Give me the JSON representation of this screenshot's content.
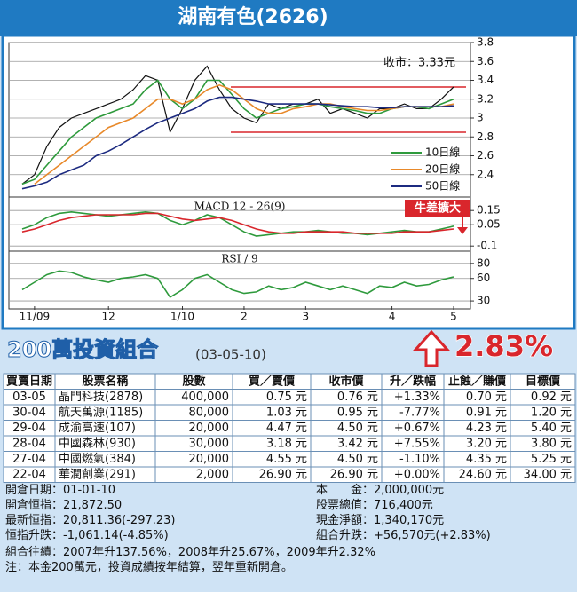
{
  "header": {
    "title": "湖南有色(2626)"
  },
  "chart_data": [
    {
      "type": "line",
      "categories": [
        null,
        "11/09",
        null,
        null,
        null,
        null,
        null,
        "12",
        null,
        null,
        null,
        null,
        null,
        "1/10",
        null,
        null,
        null,
        null,
        "2",
        null,
        null,
        null,
        null,
        "3",
        null,
        null,
        null,
        null,
        null,
        null,
        "4",
        null,
        null,
        null,
        null,
        "5"
      ],
      "ylim": [
        2.2,
        3.8
      ],
      "yticks": [
        2.4,
        2.6,
        2.8,
        3.0,
        3.2,
        3.4,
        3.6,
        3.8
      ],
      "grid": true,
      "annotation": "收市：3.33元",
      "reference_lines": [
        3.33,
        2.85
      ],
      "reference_color": "#d9262c",
      "legend": "lower right",
      "series": [
        {
          "color": "#111111",
          "values": [
            2.3,
            2.4,
            2.7,
            2.9,
            3.0,
            3.05,
            3.1,
            3.15,
            3.2,
            3.3,
            3.45,
            3.4,
            2.85,
            3.1,
            3.4,
            3.55,
            3.3,
            3.1,
            3.0,
            2.95,
            3.15,
            3.1,
            3.15,
            3.15,
            3.2,
            3.05,
            3.1,
            3.05,
            3.0,
            3.1,
            3.1,
            3.15,
            3.1,
            3.1,
            3.2,
            3.33
          ]
        },
        {
          "name": "10日線",
          "color": "#2e9a3c",
          "values": [
            2.3,
            2.35,
            2.5,
            2.65,
            2.8,
            2.9,
            3.0,
            3.05,
            3.1,
            3.15,
            3.3,
            3.4,
            3.2,
            3.1,
            3.2,
            3.4,
            3.4,
            3.25,
            3.1,
            3.0,
            3.05,
            3.1,
            3.12,
            3.15,
            3.15,
            3.12,
            3.1,
            3.08,
            3.05,
            3.05,
            3.1,
            3.12,
            3.12,
            3.1,
            3.15,
            3.2
          ]
        },
        {
          "name": "20日線",
          "color": "#e8892a",
          "values": [
            null,
            2.3,
            2.4,
            2.5,
            2.6,
            2.7,
            2.8,
            2.9,
            2.95,
            3.0,
            3.1,
            3.2,
            3.2,
            3.15,
            3.2,
            3.3,
            3.35,
            3.3,
            3.2,
            3.1,
            3.05,
            3.05,
            3.1,
            3.12,
            3.15,
            3.15,
            3.12,
            3.1,
            3.08,
            3.08,
            3.1,
            3.12,
            3.12,
            3.12,
            3.12,
            3.15
          ]
        },
        {
          "name": "50日線",
          "color": "#1c2a80",
          "values": [
            2.25,
            2.28,
            2.32,
            2.4,
            2.45,
            2.5,
            2.6,
            2.65,
            2.72,
            2.8,
            2.88,
            2.95,
            3.0,
            3.05,
            3.1,
            3.18,
            3.22,
            3.22,
            3.2,
            3.18,
            3.15,
            3.15,
            3.15,
            3.15,
            3.15,
            3.14,
            3.13,
            3.12,
            3.12,
            3.11,
            3.11,
            3.12,
            3.12,
            3.12,
            3.12,
            3.13
          ]
        }
      ]
    },
    {
      "type": "line",
      "title": "MACD 12 - 26(9)",
      "annotation": "牛差擴大",
      "ylim": [
        -0.13,
        0.22
      ],
      "yticks": [
        0.15,
        0.05,
        -0.1
      ],
      "grid": true,
      "series": [
        {
          "color": "#2e9a3c",
          "values": [
            0.02,
            0.05,
            0.1,
            0.13,
            0.14,
            0.13,
            0.12,
            0.11,
            0.12,
            0.13,
            0.14,
            0.13,
            0.08,
            0.05,
            0.08,
            0.12,
            0.1,
            0.05,
            0.0,
            -0.03,
            -0.02,
            -0.01,
            0.0,
            0.0,
            0.01,
            0.0,
            -0.01,
            -0.01,
            -0.02,
            -0.01,
            0.0,
            0.01,
            0.0,
            0.0,
            0.02,
            0.04
          ]
        },
        {
          "color": "#d9262c",
          "values": [
            0.0,
            0.02,
            0.05,
            0.08,
            0.1,
            0.11,
            0.12,
            0.12,
            0.12,
            0.12,
            0.13,
            0.13,
            0.11,
            0.09,
            0.08,
            0.09,
            0.1,
            0.08,
            0.05,
            0.02,
            0.0,
            -0.01,
            -0.01,
            0.0,
            0.0,
            0.0,
            0.0,
            -0.01,
            -0.01,
            -0.01,
            -0.01,
            0.0,
            0.0,
            0.0,
            0.01,
            0.02
          ]
        }
      ]
    },
    {
      "type": "line",
      "title": "RSI / 9",
      "ylim": [
        23,
        94
      ],
      "yticks": [
        80,
        60,
        30
      ],
      "grid": true,
      "series": [
        {
          "color": "#2e9a3c",
          "values": [
            45,
            55,
            65,
            70,
            68,
            62,
            58,
            55,
            60,
            62,
            65,
            60,
            35,
            45,
            60,
            65,
            55,
            45,
            40,
            42,
            50,
            45,
            48,
            55,
            50,
            45,
            50,
            45,
            40,
            50,
            48,
            55,
            50,
            52,
            58,
            62
          ]
        }
      ]
    }
  ],
  "portfolio": {
    "title": "200萬投資組合",
    "date": "(03-05-10)",
    "change": "2.83%",
    "columns": [
      "買賣日期",
      "股票名稱",
      "股數",
      "買／賣價",
      "收市價",
      "升／跌幅",
      "止蝕／賺價",
      "目標價"
    ],
    "rows": [
      [
        "03-05",
        "晶門科技(2878)",
        "400,000",
        "0.75 元",
        "0.76 元",
        "+1.33%",
        "0.70 元",
        "0.92 元"
      ],
      [
        "30-04",
        "航天萬源(1185)",
        "80,000",
        "1.03 元",
        "0.95 元",
        "-7.77%",
        "0.91 元",
        "1.20 元"
      ],
      [
        "29-04",
        "成渝高速(107)",
        "20,000",
        "4.47 元",
        "4.50 元",
        "+0.67%",
        "4.23 元",
        "5.40 元"
      ],
      [
        "28-04",
        "中國森林(930)",
        "30,000",
        "3.18 元",
        "3.42 元",
        "+7.55%",
        "3.20 元",
        "3.80 元"
      ],
      [
        "27-04",
        "中國燃氣(384)",
        "20,000",
        "4.55 元",
        "4.50 元",
        "-1.10%",
        "4.35 元",
        "5.25 元"
      ],
      [
        "22-04",
        "華潤創業(291)",
        "2,000",
        "26.90 元",
        "26.90 元",
        "+0.00%",
        "24.60 元",
        "34.00 元"
      ]
    ],
    "summary_left": [
      "開倉日期：01-01-10",
      "開倉恒指：21,872.50",
      "最新恒指：20,811.36(-297.23)",
      "恒指升跌：-1,061.14(-4.85%)"
    ],
    "summary_right": [
      "本　　金：2,000,000元",
      "股票總值：716,400元",
      "現金淨額：1,340,170元",
      "組合升跌：+56,570元(+2.83%)"
    ],
    "notes": [
      "組合往績：2007年升137.56%，2008年升25.67%，2009年升2.32%",
      "注：本金200萬元，投資成績按年結算，翌年重新開倉。"
    ]
  }
}
